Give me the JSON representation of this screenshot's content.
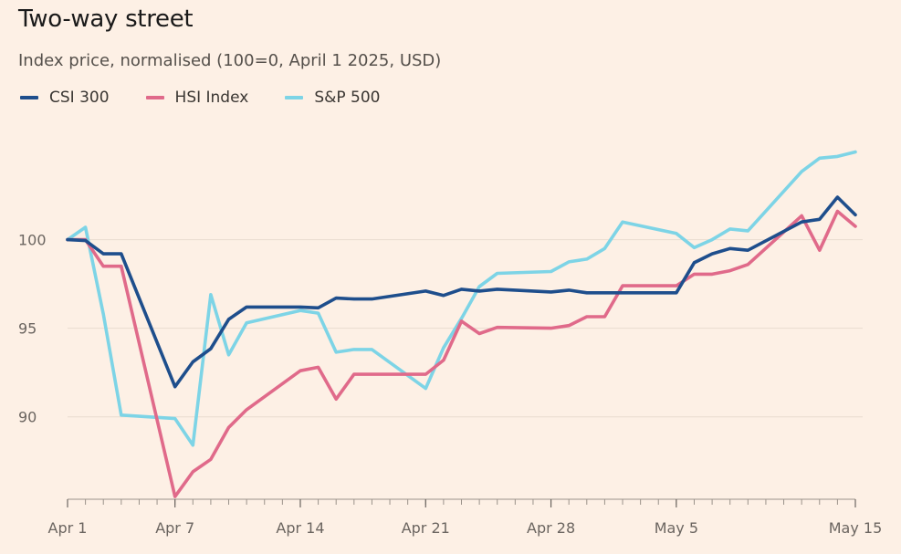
{
  "chart_data": {
    "type": "line",
    "title": "Two-way street",
    "subtitle": "Index price, normalised (100=0, April 1 2025, USD)",
    "xlabel": "",
    "ylabel": "",
    "ylim": [
      85.4,
      105.8
    ],
    "yticks": [
      90,
      95,
      100
    ],
    "xtick_labels": [
      {
        "index": 0,
        "label": "Apr 1"
      },
      {
        "index": 6,
        "label": "Apr 7"
      },
      {
        "index": 13,
        "label": "Apr 14"
      },
      {
        "index": 20,
        "label": "Apr 21"
      },
      {
        "index": 27,
        "label": "Apr 28"
      },
      {
        "index": 34,
        "label": "May 5"
      },
      {
        "index": 44,
        "label": "May 15"
      }
    ],
    "x": [
      "Apr 1",
      "Apr 2",
      "Apr 3",
      "Apr 4",
      "Apr 5",
      "Apr 6",
      "Apr 7",
      "Apr 8",
      "Apr 9",
      "Apr 10",
      "Apr 11",
      "Apr 12",
      "Apr 13",
      "Apr 14",
      "Apr 15",
      "Apr 16",
      "Apr 17",
      "Apr 18",
      "Apr 19",
      "Apr 20",
      "Apr 21",
      "Apr 22",
      "Apr 23",
      "Apr 24",
      "Apr 25",
      "Apr 26",
      "Apr 27",
      "Apr 28",
      "Apr 29",
      "Apr 30",
      "May 1",
      "May 2",
      "May 3",
      "May 4",
      "May 5",
      "May 6",
      "May 7",
      "May 8",
      "May 9",
      "May 10",
      "May 11",
      "May 12",
      "May 13",
      "May 14",
      "May 15"
    ],
    "series": [
      {
        "name": "CSI 300",
        "color": "#1e4e8c",
        "points": [
          [
            0,
            100.0
          ],
          [
            1,
            99.95
          ],
          [
            2,
            99.2
          ],
          [
            3,
            99.2
          ],
          [
            4,
            91.7
          ],
          [
            5,
            93.1
          ],
          [
            6,
            93.85
          ],
          [
            7,
            95.5
          ],
          [
            8,
            96.2
          ],
          [
            9,
            96.2
          ],
          [
            10,
            96.15
          ],
          [
            11,
            96.7
          ],
          [
            12,
            96.65
          ],
          [
            13,
            96.65
          ],
          [
            14,
            97.1
          ],
          [
            15,
            96.85
          ],
          [
            16,
            97.2
          ],
          [
            17,
            97.1
          ],
          [
            18,
            97.2
          ],
          [
            19,
            97.05
          ],
          [
            20,
            97.15
          ],
          [
            21,
            97.0
          ],
          [
            22,
            97.0
          ],
          [
            23,
            97.0
          ],
          [
            24,
            97.0
          ],
          [
            25,
            98.7
          ],
          [
            26,
            99.2
          ],
          [
            27,
            99.5
          ],
          [
            28,
            99.4
          ],
          [
            29,
            101.0
          ],
          [
            30,
            101.15
          ],
          [
            31,
            102.4
          ],
          [
            32,
            101.4
          ]
        ]
      },
      {
        "name": "HSI Index",
        "color": "#e06a8a",
        "points": [
          [
            0,
            100.0
          ],
          [
            1,
            100.0
          ],
          [
            2,
            98.5
          ],
          [
            3,
            98.5
          ],
          [
            4,
            85.5
          ],
          [
            5,
            86.9
          ],
          [
            6,
            87.6
          ],
          [
            7,
            89.4
          ],
          [
            8,
            90.4
          ],
          [
            9,
            92.6
          ],
          [
            10,
            92.8
          ],
          [
            11,
            91.0
          ],
          [
            12,
            92.4
          ],
          [
            13,
            92.4
          ],
          [
            14,
            92.4
          ],
          [
            15,
            93.2
          ],
          [
            16,
            95.4
          ],
          [
            17,
            94.7
          ],
          [
            18,
            95.05
          ],
          [
            19,
            95.0
          ],
          [
            20,
            95.15
          ],
          [
            21,
            95.65
          ],
          [
            22,
            95.65
          ],
          [
            23,
            97.4
          ],
          [
            24,
            97.4
          ],
          [
            25,
            98.05
          ],
          [
            26,
            98.05
          ],
          [
            27,
            98.25
          ],
          [
            28,
            98.6
          ],
          [
            29,
            101.35
          ],
          [
            30,
            99.4
          ],
          [
            31,
            101.6
          ],
          [
            32,
            100.75
          ]
        ]
      },
      {
        "name": "S&P 500",
        "color": "#7dd4e6",
        "points": [
          [
            0,
            100.0
          ],
          [
            1,
            100.7
          ],
          [
            2,
            95.8
          ],
          [
            3,
            90.1
          ],
          [
            4,
            89.9
          ],
          [
            5,
            88.4
          ],
          [
            6,
            96.9
          ],
          [
            7,
            93.5
          ],
          [
            8,
            95.3
          ],
          [
            9,
            96.0
          ],
          [
            10,
            95.85
          ],
          [
            11,
            93.65
          ],
          [
            12,
            93.8
          ],
          [
            13,
            93.8
          ],
          [
            14,
            91.6
          ],
          [
            15,
            93.9
          ],
          [
            16,
            95.55
          ],
          [
            17,
            97.35
          ],
          [
            18,
            98.1
          ],
          [
            19,
            98.2
          ],
          [
            20,
            98.75
          ],
          [
            21,
            98.9
          ],
          [
            22,
            99.5
          ],
          [
            23,
            101.0
          ],
          [
            24,
            100.35
          ],
          [
            25,
            99.55
          ],
          [
            26,
            100.0
          ],
          [
            27,
            100.6
          ],
          [
            28,
            100.5
          ],
          [
            29,
            103.85
          ],
          [
            30,
            104.6
          ],
          [
            31,
            104.7
          ],
          [
            32,
            104.95
          ]
        ]
      }
    ],
    "_note_points": "points are [trading-day index, value]; trading-day index 0..32 maps onto the 45 calendar days via the trading_days list",
    "trading_days": [
      "Apr 1",
      "Apr 2",
      "Apr 3",
      "Apr 4",
      "Apr 7",
      "Apr 8",
      "Apr 9",
      "Apr 10",
      "Apr 11",
      "Apr 14",
      "Apr 15",
      "Apr 16",
      "Apr 17",
      "Apr 18",
      "Apr 21",
      "Apr 22",
      "Apr 23",
      "Apr 24",
      "Apr 25",
      "Apr 28",
      "Apr 29",
      "Apr 30",
      "May 1",
      "May 2",
      "May 5",
      "May 6",
      "May 7",
      "May 8",
      "May 9",
      "May 12",
      "May 13",
      "May 14",
      "May 15"
    ]
  }
}
